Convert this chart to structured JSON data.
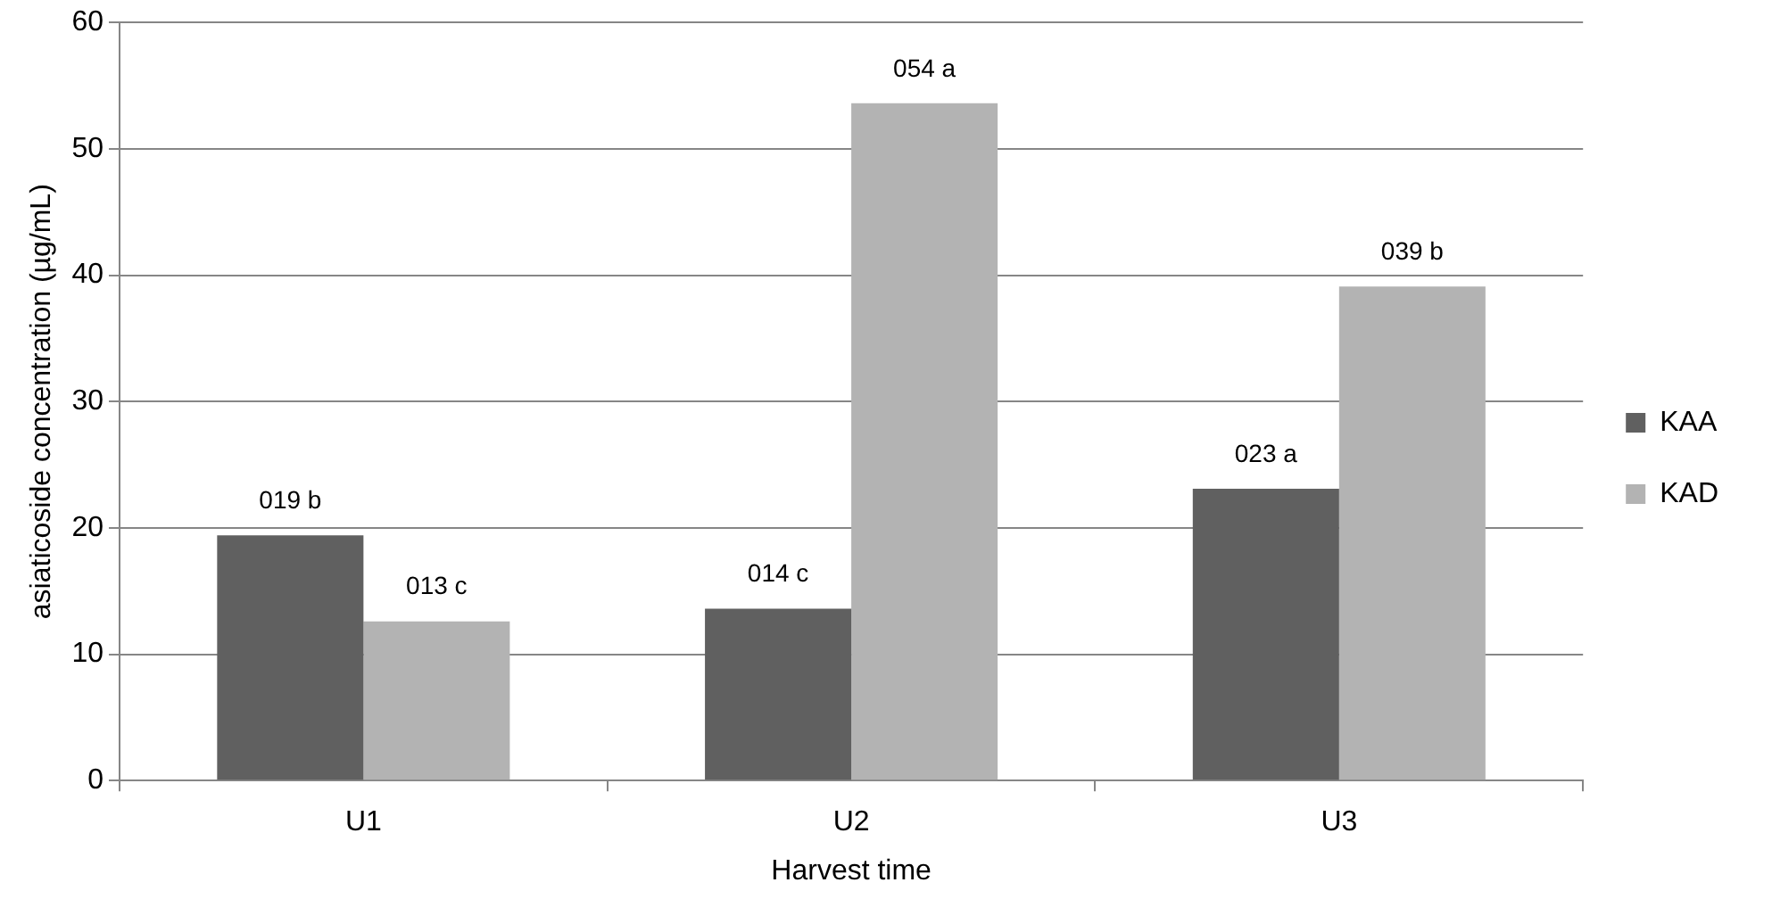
{
  "chart_data": {
    "type": "bar",
    "xlabel": "Harvest time",
    "ylabel": "asiaticoside concentration (µg/mL)",
    "categories": [
      "U1",
      "U2",
      "U3"
    ],
    "series": [
      {
        "name": "KAA",
        "color": "#606060",
        "values": [
          19.4,
          13.6,
          23.1
        ],
        "value_labels": [
          "019 b",
          "014 c",
          "023 a"
        ]
      },
      {
        "name": "KAD",
        "color": "#b3b3b3",
        "values": [
          12.6,
          53.6,
          39.1
        ],
        "value_labels": [
          "013 c",
          "054 a",
          "039 b"
        ]
      }
    ],
    "ylim": [
      0,
      60
    ],
    "yticks": [
      0,
      10,
      20,
      30,
      40,
      50,
      60
    ],
    "grid": "y",
    "legend": "right"
  }
}
